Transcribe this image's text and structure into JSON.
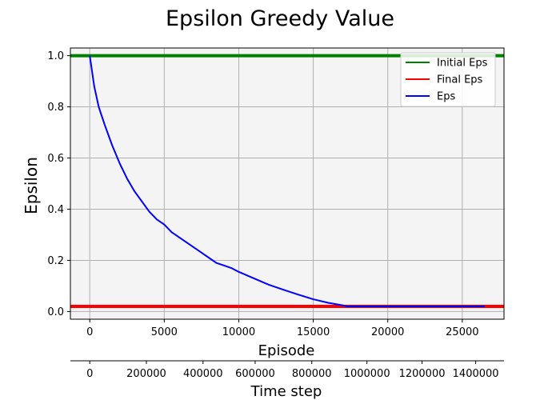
{
  "chart_data": {
    "type": "line",
    "title": "Epsilon Greedy Value",
    "xlabel": "Episode",
    "ylabel": "Epsilon",
    "secondary_xlabel": "Time step",
    "xlim": [
      -1300,
      27800
    ],
    "ylim": [
      -0.03,
      1.03
    ],
    "x_ticks": [
      0,
      5000,
      10000,
      15000,
      20000,
      25000
    ],
    "y_ticks": [
      0.0,
      0.2,
      0.4,
      0.6,
      0.8,
      1.0
    ],
    "y_tick_labels": [
      "0.0",
      "0.2",
      "0.4",
      "0.6",
      "0.8",
      "1.0"
    ],
    "secondary_x_ticks": [
      {
        "episode": 0,
        "label": "0"
      },
      {
        "episode": 3800,
        "label": "200000"
      },
      {
        "episode": 7600,
        "label": "400000"
      },
      {
        "episode": 11100,
        "label": "600000"
      },
      {
        "episode": 14900,
        "label": "800000"
      },
      {
        "episode": 18600,
        "label": "1000000"
      },
      {
        "episode": 22300,
        "label": "1200000"
      },
      {
        "episode": 25900,
        "label": "1400000"
      }
    ],
    "grid": true,
    "legend_position": "top-right",
    "colors": {
      "background": "#f4f4f4",
      "grid": "#b0b0b0"
    },
    "series": [
      {
        "name": "Initial Eps",
        "color": "#008000",
        "style": "hline",
        "y": 1.0
      },
      {
        "name": "Final Eps",
        "color": "#ff0000",
        "style": "hline",
        "y": 0.02
      },
      {
        "name": "Eps",
        "color": "#0000ff",
        "style": "line",
        "x": [
          0,
          300,
          600,
          1000,
          1500,
          2000,
          2500,
          3000,
          3500,
          4000,
          4500,
          5000,
          5500,
          6000,
          6500,
          7000,
          7500,
          8000,
          8500,
          9000,
          9500,
          10000,
          11000,
          12000,
          13000,
          14000,
          15000,
          16000,
          17000,
          17300,
          18000,
          20000,
          22000,
          24000,
          26500
        ],
        "y": [
          1.0,
          0.88,
          0.8,
          0.73,
          0.65,
          0.58,
          0.52,
          0.47,
          0.43,
          0.39,
          0.36,
          0.34,
          0.31,
          0.29,
          0.27,
          0.25,
          0.23,
          0.21,
          0.19,
          0.18,
          0.17,
          0.155,
          0.13,
          0.105,
          0.085,
          0.066,
          0.048,
          0.034,
          0.024,
          0.02,
          0.02,
          0.02,
          0.02,
          0.02,
          0.02
        ]
      }
    ]
  }
}
